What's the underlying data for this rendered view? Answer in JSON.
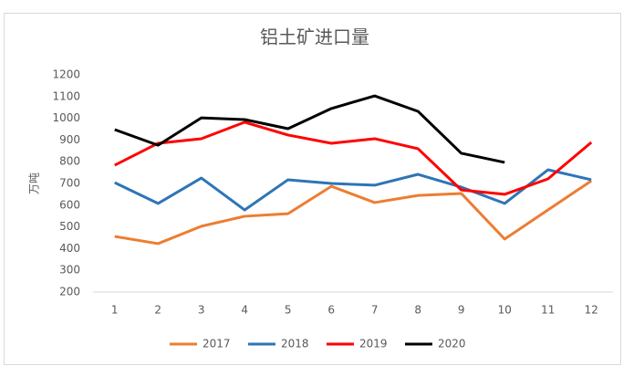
{
  "chart_data": {
    "type": "line",
    "title": "铝土矿进口量",
    "y_label": "万吨",
    "categories": [
      "1",
      "2",
      "3",
      "4",
      "5",
      "6",
      "7",
      "8",
      "9",
      "10",
      "11",
      "12"
    ],
    "series": [
      {
        "name": "2017",
        "color": "#ed7d31",
        "values": [
          456,
          423,
          503,
          549,
          561,
          687,
          612,
          645,
          654,
          444,
          578,
          712
        ]
      },
      {
        "name": "2018",
        "color": "#2e75b6",
        "values": [
          704,
          608,
          725,
          578,
          717,
          700,
          692,
          742,
          683,
          608,
          763,
          717
        ]
      },
      {
        "name": "2019",
        "color": "#ff0000",
        "values": [
          784,
          885,
          906,
          982,
          923,
          885,
          906,
          860,
          670,
          650,
          721,
          889
        ]
      },
      {
        "name": "2020",
        "color": "#000000",
        "values": [
          948,
          876,
          1002,
          994,
          952,
          1045,
          1103,
          1032,
          839,
          797,
          null,
          null
        ]
      }
    ],
    "ylim": [
      200,
      1200
    ],
    "yticks": [
      200,
      300,
      400,
      500,
      600,
      700,
      800,
      900,
      1000,
      1100,
      1200
    ],
    "grid": false,
    "legend": "bottom"
  }
}
